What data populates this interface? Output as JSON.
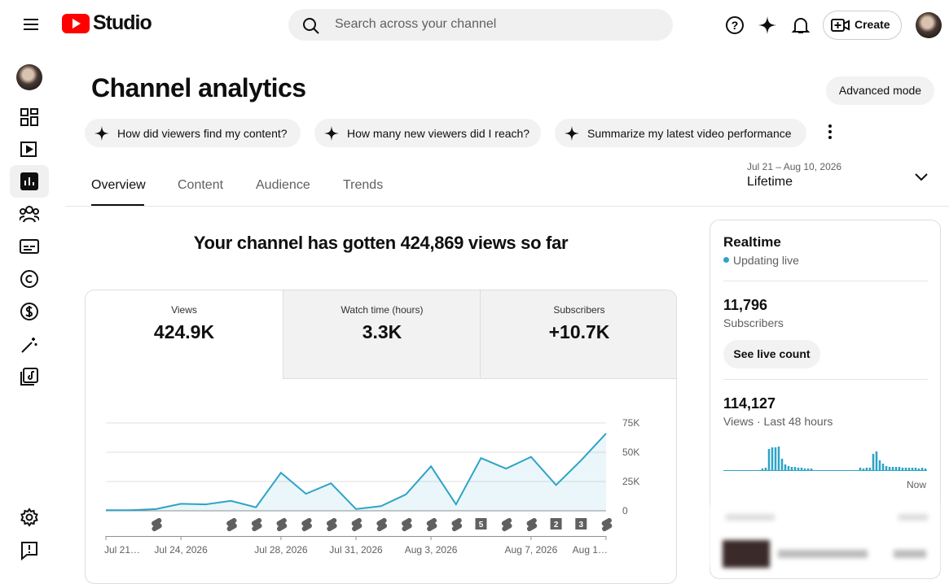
{
  "header": {
    "logo_text": "Studio",
    "search_placeholder": "Search across your channel",
    "create": "Create"
  },
  "page": {
    "title": "Channel analytics",
    "advanced": "Advanced mode",
    "suggestions": [
      "How did viewers find my content?",
      "How many new viewers did I reach?",
      "Summarize my latest video performance"
    ],
    "tabs": [
      "Overview",
      "Content",
      "Audience",
      "Trends"
    ]
  },
  "date_range": {
    "range": "Jul 21 – Aug 10, 2026",
    "label": "Lifetime"
  },
  "summary": "Your channel has gotten 424,869 views so far",
  "metrics": [
    {
      "label": "Views",
      "value": "424.9K"
    },
    {
      "label": "Watch time (hours)",
      "value": "3.3K"
    },
    {
      "label": "Subscribers",
      "value": "+10.7K"
    }
  ],
  "chart_data": {
    "type": "line",
    "color": "#2ea3c7",
    "area": true,
    "grid": true,
    "categories": [
      "Jul 21…",
      null,
      null,
      "Jul 24, 2026",
      null,
      null,
      null,
      "Jul 28, 2026",
      null,
      null,
      "Jul 31, 2026",
      null,
      null,
      "Aug 3, 2026",
      null,
      null,
      null,
      "Aug 7, 2026",
      null,
      null,
      "Aug 1…"
    ],
    "values": [
      500,
      500,
      1500,
      6000,
      5500,
      8500,
      3000,
      32500,
      14500,
      23500,
      1500,
      4000,
      14000,
      38000,
      5500,
      45000,
      36000,
      46000,
      22000,
      43000,
      66000
    ],
    "uploads": [
      null,
      null,
      1,
      null,
      null,
      1,
      1,
      1,
      1,
      1,
      1,
      1,
      1,
      1,
      1,
      5,
      1,
      1,
      2,
      3,
      1
    ],
    "ylim": [
      0,
      75000
    ],
    "yticks": [
      0,
      {
        "value": 25000,
        "label": "25K"
      },
      {
        "value": 50000,
        "label": "50K"
      },
      {
        "value": 75000,
        "label": "75K"
      }
    ]
  },
  "realtime": {
    "title": "Realtime",
    "status": "Updating live",
    "subscribers": "11,796",
    "subscribers_label": "Subscribers",
    "live_count_button": "See live count",
    "views": "114,127",
    "views_label": "Views · Last 48 hours",
    "now_label": "Now"
  }
}
